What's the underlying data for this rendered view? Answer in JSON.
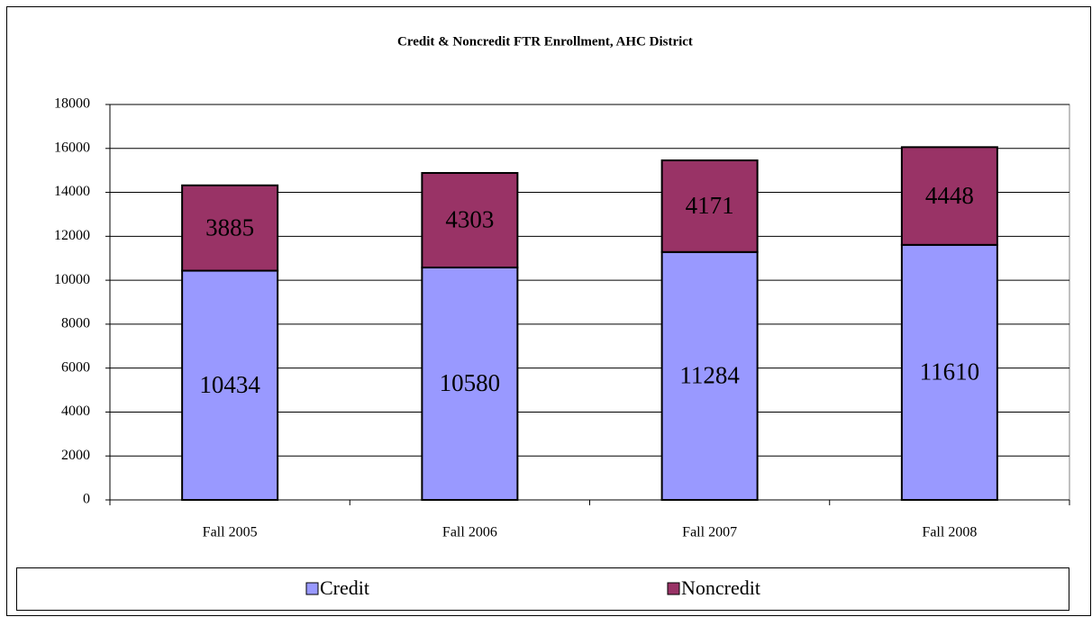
{
  "chart_data": {
    "type": "stacked_bar",
    "title": "Credit & Noncredit FTR Enrollment, AHC District",
    "categories": [
      "Fall 2005",
      "Fall 2006",
      "Fall 2007",
      "Fall 2008"
    ],
    "series": [
      {
        "name": "Credit",
        "color": "#9999ff",
        "values": [
          10434,
          10580,
          11284,
          11610
        ]
      },
      {
        "name": "Noncredit",
        "color": "#993366",
        "values": [
          3885,
          4303,
          4171,
          4448
        ]
      }
    ],
    "ylim": [
      0,
      18000
    ],
    "yticks": [
      0,
      2000,
      4000,
      6000,
      8000,
      10000,
      12000,
      14000,
      16000,
      18000
    ],
    "grid": true,
    "legend": "bottom"
  }
}
